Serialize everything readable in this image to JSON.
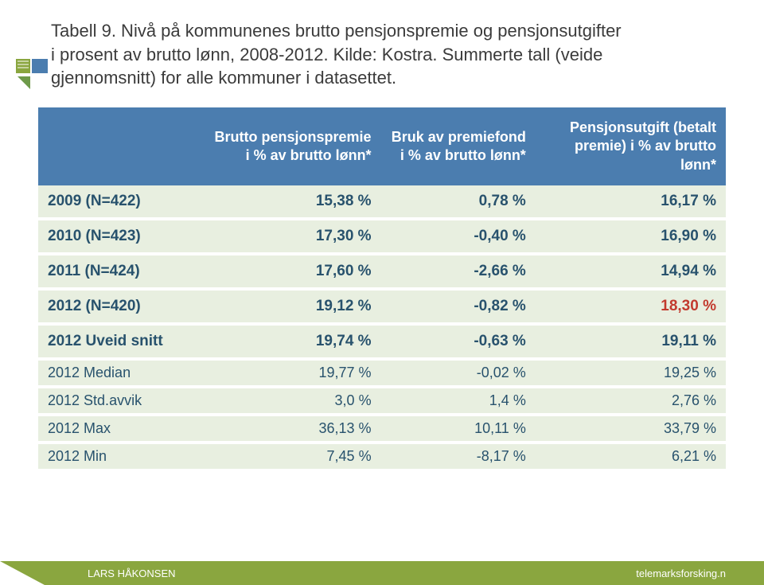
{
  "title": {
    "line1": "Tabell 9. Nivå på kommunenes brutto pensjonspremie og pensjonsutgifter",
    "line2": "i prosent av brutto lønn, 2008-2012. Kilde: Kostra. Summerte tall (veide",
    "line3": "gjennomsnitt) for alle kommuner i datasettet.",
    "color": "#3b3b3b",
    "fontsize": 22
  },
  "logo": {
    "colors": [
      "#8aa63f",
      "#4b7daf",
      "#6e9a4a"
    ]
  },
  "table": {
    "header_bg": "#4b7daf",
    "header_fg": "#ffffff",
    "row_bg": "#e8efe0",
    "cell_fg": "#28526d",
    "highlight_fg": "#c23a2e",
    "columns": [
      "",
      "Brutto pensjonspremie i % av brutto lønn*",
      "Bruk av premiefond i % av brutto lønn*",
      "Pensjonsutgift (betalt premie) i % av brutto lønn*"
    ],
    "main_rows": [
      {
        "label": "2009 (N=422)",
        "c1": "15,38 %",
        "c2": "0,78 %",
        "c3": "16,17 %",
        "hl": false
      },
      {
        "label": "2010 (N=423)",
        "c1": "17,30 %",
        "c2": "-0,40 %",
        "c3": "16,90 %",
        "hl": false
      },
      {
        "label": "2011 (N=424)",
        "c1": "17,60 %",
        "c2": "-2,66 %",
        "c3": "14,94 %",
        "hl": false
      },
      {
        "label": "2012 (N=420)",
        "c1": "19,12 %",
        "c2": "-0,82 %",
        "c3": "18,30 %",
        "hl": true
      },
      {
        "label": "2012 Uveid snitt",
        "c1": "19,74 %",
        "c2": "-0,63 %",
        "c3": "19,11 %",
        "hl": false
      }
    ],
    "sub_rows": [
      {
        "label": "2012 Median",
        "c1": "19,77 %",
        "c2": "-0,02 %",
        "c3": "19,25 %"
      },
      {
        "label": "2012 Std.avvik",
        "c1": "3,0 %",
        "c2": "1,4 %",
        "c3": "2,76 %"
      },
      {
        "label": "2012 Max",
        "c1": "36,13 %",
        "c2": "10,11 %",
        "c3": "33,79 %"
      },
      {
        "label": "2012 Min",
        "c1": "7,45 %",
        "c2": "-8,17 %",
        "c3": "6,21 %"
      }
    ]
  },
  "footer": {
    "left": "LARS HÅKONSEN",
    "right": "telemarksforsking.n",
    "bg": "#8aa63f",
    "fg": "#ffffff"
  }
}
